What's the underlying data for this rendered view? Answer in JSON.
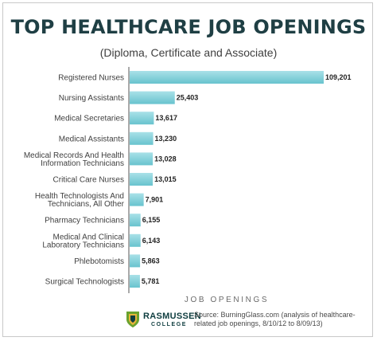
{
  "colors": {
    "bar_top": "#a9e1e8",
    "bar_bottom": "#68c3ce",
    "axis": "#555555",
    "title": "#1f3f44",
    "logo_green": "#6aa22e",
    "logo_gold": "#e6b43a"
  },
  "header": {
    "title": "TOP HEALTHCARE JOB OPENINGS",
    "subtitle": "(Diploma, Certificate and Associate)"
  },
  "logo": {
    "icon": "rasmussen-shield-icon",
    "name": "RASMUSSEN",
    "sub": "COLLEGE"
  },
  "source": {
    "line1": "Source: BurningGlass.com (analysis of healthcare-",
    "line2": "related job openings, 8/10/12 to 8/09/13)"
  },
  "chart_data": {
    "type": "bar",
    "orientation": "horizontal",
    "title": "TOP HEALTHCARE JOB OPENINGS",
    "subtitle": "(Diploma, Certificate and Associate)",
    "xlabel": "JOB OPENINGS",
    "ylabel": "",
    "xlim": [
      0,
      109201
    ],
    "grid": false,
    "categories": [
      [
        "Registered Nurses"
      ],
      [
        "Nursing Assistants"
      ],
      [
        "Medical Secretaries"
      ],
      [
        "Medical Assistants"
      ],
      [
        "Medical Records And Health",
        "Information Technicians"
      ],
      [
        "Critical Care Nurses"
      ],
      [
        "Health Technologists And",
        "Technicians, All Other"
      ],
      [
        "Pharmacy Technicians"
      ],
      [
        "Medical And Clinical",
        "Laboratory Technicians"
      ],
      [
        "Phlebotomists"
      ],
      [
        "Surgical Technologists"
      ]
    ],
    "values": [
      109201,
      25403,
      13617,
      13230,
      13028,
      13015,
      7901,
      6155,
      6143,
      5863,
      5781
    ],
    "value_labels": [
      "109,201",
      "25,403",
      "13,617",
      "13,230",
      "13,028",
      "13,015",
      "7,901",
      "6,155",
      "6,143",
      "5,863",
      "5,781"
    ]
  }
}
